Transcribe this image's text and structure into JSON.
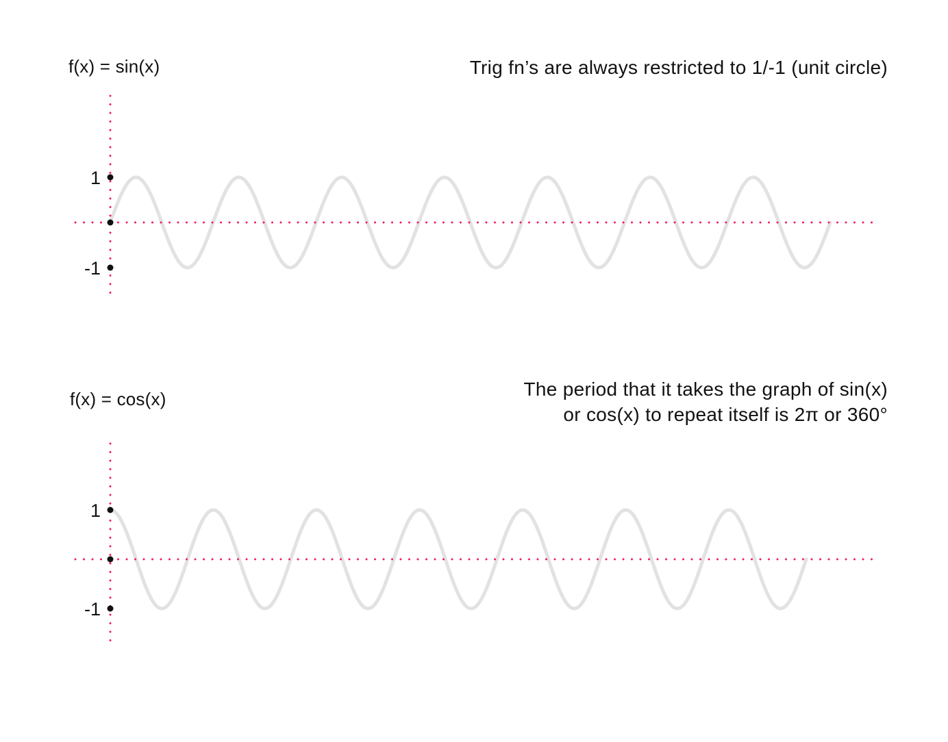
{
  "colors": {
    "axis": "#ee1c64",
    "curve": "#e2e2e2",
    "marker": "#111111",
    "text": "#111111"
  },
  "chart_data": [
    {
      "type": "line",
      "function": "sin",
      "title": "f(x) = sin(x)",
      "note": [
        "Trig fn’s are always restricted to 1/-1 (unit circle)"
      ],
      "y_ticks": [
        1,
        0,
        -1
      ],
      "y_tick_labels": [
        "1",
        "",
        "-1"
      ],
      "ylim": [
        -1,
        1
      ],
      "periods": 7,
      "grid": false,
      "legend": "none"
    },
    {
      "type": "line",
      "function": "cos",
      "title": "f(x) = cos(x)",
      "note": [
        "The period that it takes the graph of sin(x)",
        "or cos(x) to repeat itself is 2π or 360°"
      ],
      "y_ticks": [
        1,
        0,
        -1
      ],
      "y_tick_labels": [
        "1",
        "",
        "-1"
      ],
      "ylim": [
        -1,
        1
      ],
      "periods": 6.75,
      "grid": false,
      "legend": "none"
    }
  ]
}
